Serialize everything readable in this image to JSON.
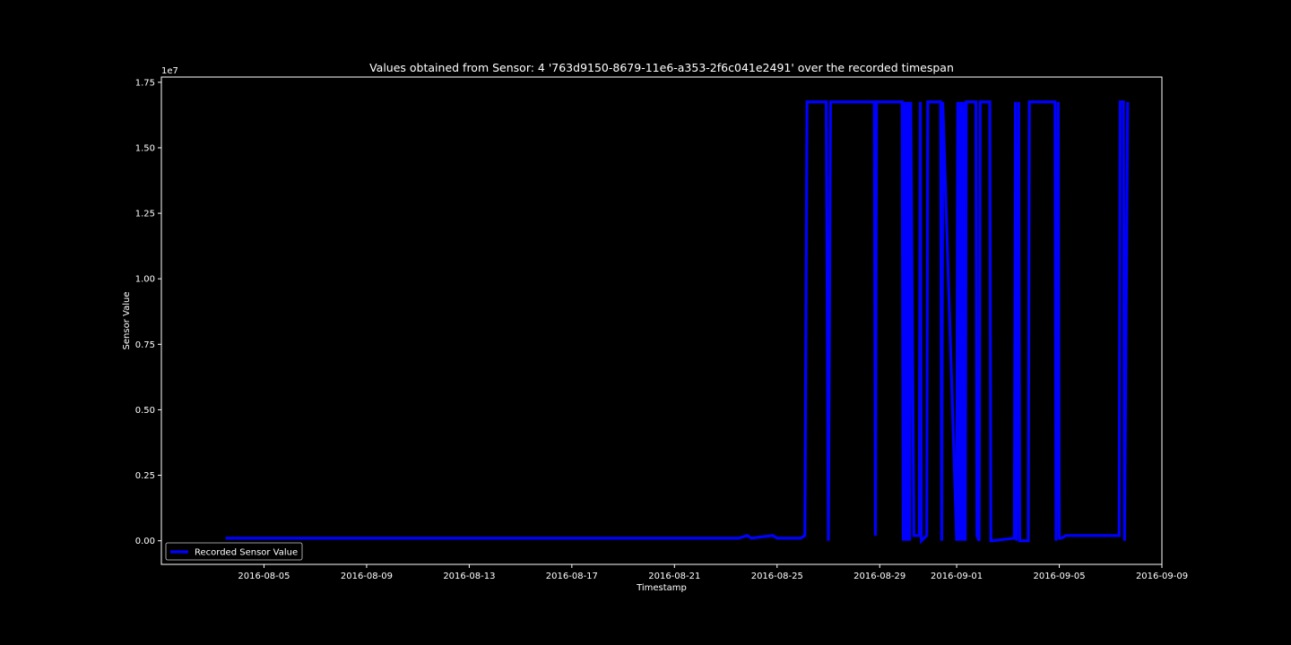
{
  "chart_data": {
    "type": "line",
    "title": "Values obtained from Sensor: 4 '763d9150-8679-11e6-a353-2f6c041e2491' over the recorded timespan",
    "xlabel": "Timestamp",
    "ylabel": "Sensor Value",
    "y_offset_label": "1e7",
    "y_multiplier": 10000000,
    "xlim": [
      "2016-08-01",
      "2016-09-09"
    ],
    "ylim": [
      -0.09,
      1.77
    ],
    "grid": false,
    "legend_position": "lower-left",
    "x_ticks": [
      "2016-08-05",
      "2016-08-09",
      "2016-08-13",
      "2016-08-17",
      "2016-08-21",
      "2016-08-25",
      "2016-08-29",
      "2016-09-01",
      "2016-09-05",
      "2016-09-09"
    ],
    "y_ticks": [
      "0.00",
      "0.25",
      "0.50",
      "0.75",
      "1.00",
      "1.25",
      "1.50",
      "1.75"
    ],
    "series": [
      {
        "name": "Recorded Sensor Value",
        "color": "#0000ff",
        "x": [
          "2016-08-03T12:00",
          "2016-08-23T12:00",
          "2016-08-23T20:00",
          "2016-08-24T00:00",
          "2016-08-24T20:00",
          "2016-08-25T00:00",
          "2016-08-25T22:00",
          "2016-08-26T02:00",
          "2016-08-26T04:00",
          "2016-08-26T06:00",
          "2016-08-26T22:00",
          "2016-08-27T00:00",
          "2016-08-27T02:00",
          "2016-08-27T04:00",
          "2016-08-28T19:00",
          "2016-08-28T20:00",
          "2016-08-28T21:00",
          "2016-08-29T21:00",
          "2016-08-29T22:00",
          "2016-08-29T23:00",
          "2016-08-30T00:00",
          "2016-08-30T01:00",
          "2016-08-30T02:00",
          "2016-08-30T03:00",
          "2016-08-30T04:00",
          "2016-08-30T05:00",
          "2016-08-30T08:00",
          "2016-08-30T13:00",
          "2016-08-30T14:00",
          "2016-08-30T15:00",
          "2016-08-30T20:00",
          "2016-08-30T21:00",
          "2016-08-30T22:00",
          "2016-08-31T09:00",
          "2016-08-31T10:00",
          "2016-08-31T11:00",
          "2016-09-01T00:00",
          "2016-09-01T01:00",
          "2016-09-01T02:00",
          "2016-09-01T03:00",
          "2016-09-01T04:00",
          "2016-09-01T05:00",
          "2016-09-01T06:00",
          "2016-09-01T07:00",
          "2016-09-01T08:00",
          "2016-09-01T09:00",
          "2016-09-01T18:00",
          "2016-09-01T19:00",
          "2016-09-01T21:00",
          "2016-09-01T22:00",
          "2016-09-02T07:00",
          "2016-09-02T08:00",
          "2016-09-02T09:00",
          "2016-09-03T06:00",
          "2016-09-03T07:00",
          "2016-09-03T08:00",
          "2016-09-03T10:00",
          "2016-09-03T11:00",
          "2016-09-03T19:00",
          "2016-09-03T20:00",
          "2016-09-03T21:00",
          "2016-09-04T20:00",
          "2016-09-04T21:00",
          "2016-09-04T23:00",
          "2016-09-05T00:00",
          "2016-09-05T02:00",
          "2016-09-05T06:00",
          "2016-09-07T08:00",
          "2016-09-07T09:00",
          "2016-09-07T12:00",
          "2016-09-07T13:00",
          "2016-09-07T16:00"
        ],
        "values": [
          0.01,
          0.01,
          0.02,
          0.01,
          0.02,
          0.01,
          0.01,
          0.02,
          1.675,
          1.675,
          1.675,
          0.0,
          1.675,
          1.675,
          1.675,
          0.02,
          1.675,
          1.675,
          0.0,
          1.675,
          0.0,
          1.675,
          0.0,
          1.675,
          0.0,
          1.675,
          0.02,
          0.02,
          1.675,
          0.0,
          0.02,
          1.675,
          1.675,
          1.675,
          0.0,
          1.675,
          0.0,
          1.675,
          0.0,
          1.675,
          0.0,
          1.675,
          0.0,
          1.675,
          0.0,
          1.675,
          1.675,
          0.02,
          0.0,
          1.675,
          1.675,
          0.0,
          0.0,
          0.01,
          1.675,
          0.0,
          1.675,
          0.0,
          0.0,
          1.675,
          1.675,
          1.675,
          0.0,
          1.675,
          0.01,
          0.01,
          0.02,
          0.02,
          1.675,
          1.675,
          0.0,
          1.675
        ]
      }
    ]
  }
}
